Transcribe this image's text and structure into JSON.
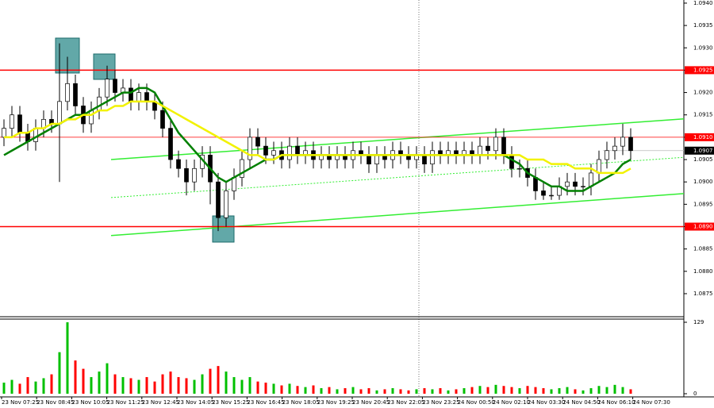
{
  "chart_data": {
    "type": "candlestick",
    "ylim": [
      1.08702,
      1.09407
    ],
    "yticks": [
      {
        "value": 1.094,
        "label": "1.0940"
      },
      1.0935,
      {
        "value": 1.093,
        "label": "1.0930"
      },
      1.0925,
      {
        "value": 1.092,
        "label": "1.0920"
      },
      1.0915,
      {
        "value": 1.091,
        "label": "1.0910"
      },
      1.0905,
      {
        "value": 1.09,
        "label": "1.0900"
      },
      1.0895,
      {
        "value": 1.089,
        "label": "1.0890"
      },
      1.0885,
      {
        "value": 1.088,
        "label": "1.0880"
      },
      1.0875
    ],
    "time_labels": [
      "23 Nov 07:25",
      "23 Nov 08:45",
      "23 Nov 10:05",
      "23 Nov 11:25",
      "23 Nov 12:45",
      "23 Nov 14:05",
      "23 Nov 15:25",
      "23 Nov 16:45",
      "23 Nov 18:05",
      "23 Nov 19:25",
      "23 Nov 20:45",
      "23 Nov 22:05",
      "23 Nov 23:25",
      "24 Nov 00:50",
      "24 Nov 02:10",
      "24 Nov 03:30",
      "24 Nov 04:50",
      "24 Nov 06:10",
      "24 Nov 07:30"
    ],
    "candles": {
      "up_color": "#ffffff",
      "down_color": "#000000",
      "open": [
        1.091,
        1.0912,
        1.0915,
        1.0911,
        1.0909,
        1.0912,
        1.0914,
        1.0913,
        1.0918,
        1.0922,
        1.0917,
        1.0913,
        1.0916,
        1.0919,
        1.0923,
        1.092,
        1.0921,
        1.0918,
        1.092,
        1.0918,
        1.0916,
        1.0912,
        1.0905,
        1.0903,
        1.09,
        1.0903,
        1.0906,
        1.09,
        1.0892,
        1.0898,
        1.0901,
        1.0905,
        1.091,
        1.0908,
        1.0906,
        1.0907,
        1.0905,
        1.0908,
        1.0906,
        1.0907,
        1.0905,
        1.0906,
        1.0905,
        1.0906,
        1.0905,
        1.0907,
        1.0906,
        1.0904,
        1.0906,
        1.0905,
        1.0907,
        1.0906,
        1.0905,
        1.0906,
        1.0904,
        1.0907,
        1.0906,
        1.0907,
        1.0906,
        1.0907,
        1.0906,
        1.0908,
        1.0907,
        1.091,
        1.0906,
        1.0903,
        1.0903,
        1.0901,
        1.0898,
        1.0897,
        1.0897,
        1.0899,
        1.09,
        1.0899,
        1.0899,
        1.0902,
        1.0905,
        1.0907,
        1.0908,
        1.091
      ],
      "high": [
        1.0914,
        1.0917,
        1.0917,
        1.0913,
        1.0914,
        1.0916,
        1.0916,
        1.0931,
        1.0928,
        1.0924,
        1.0919,
        1.0918,
        1.0921,
        1.0926,
        1.0925,
        1.0923,
        1.0923,
        1.0922,
        1.0922,
        1.092,
        1.0918,
        1.0914,
        1.0907,
        1.0905,
        1.0905,
        1.0908,
        1.0908,
        1.0902,
        1.09,
        1.0903,
        1.0907,
        1.0912,
        1.0912,
        1.091,
        1.0909,
        1.0909,
        1.091,
        1.091,
        1.0909,
        1.0909,
        1.0908,
        1.0908,
        1.0908,
        1.0908,
        1.0909,
        1.0909,
        1.0908,
        1.0908,
        1.0908,
        1.0909,
        1.0909,
        1.0908,
        1.0908,
        1.0908,
        1.0909,
        1.0909,
        1.0909,
        1.0909,
        1.0909,
        1.0909,
        1.091,
        1.091,
        1.0912,
        1.0912,
        1.0908,
        1.0905,
        1.0905,
        1.0903,
        1.09,
        1.0899,
        1.0901,
        1.0902,
        1.0902,
        1.0901,
        1.0904,
        1.0907,
        1.0909,
        1.091,
        1.0913,
        1.0912
      ],
      "low": [
        1.0908,
        1.091,
        1.0909,
        1.0907,
        1.0907,
        1.091,
        1.0911,
        1.09,
        1.0916,
        1.0915,
        1.0911,
        1.0911,
        1.0914,
        1.0917,
        1.0918,
        1.0918,
        1.0916,
        1.0916,
        1.0916,
        1.0914,
        1.091,
        1.0903,
        1.0901,
        1.0897,
        1.0898,
        1.0901,
        1.0895,
        1.0889,
        1.089,
        1.0896,
        1.0899,
        1.0903,
        1.0906,
        1.0904,
        1.0904,
        1.0903,
        1.0903,
        1.0904,
        1.0904,
        1.0903,
        1.0903,
        1.0903,
        1.0903,
        1.0903,
        1.0903,
        1.0904,
        1.0902,
        1.0902,
        1.0903,
        1.0903,
        1.0904,
        1.0903,
        1.0903,
        1.0902,
        1.0902,
        1.0904,
        1.0904,
        1.0904,
        1.0904,
        1.0904,
        1.0904,
        1.0905,
        1.0905,
        1.0904,
        1.0901,
        1.0901,
        1.0899,
        1.0896,
        1.0896,
        1.0896,
        1.0896,
        1.0897,
        1.0897,
        1.0897,
        1.0897,
        1.09,
        1.0903,
        1.0905,
        1.0906,
        1.0905
      ],
      "close": [
        1.0912,
        1.0915,
        1.0911,
        1.0909,
        1.0912,
        1.0914,
        1.0913,
        1.0918,
        1.0922,
        1.0917,
        1.0913,
        1.0916,
        1.0919,
        1.0923,
        1.092,
        1.0921,
        1.0918,
        1.092,
        1.0918,
        1.0916,
        1.0912,
        1.0905,
        1.0903,
        1.09,
        1.0903,
        1.0906,
        1.09,
        1.0892,
        1.0898,
        1.0901,
        1.0905,
        1.091,
        1.0908,
        1.0906,
        1.0907,
        1.0905,
        1.0908,
        1.0906,
        1.0907,
        1.0905,
        1.0906,
        1.0905,
        1.0906,
        1.0905,
        1.0907,
        1.0906,
        1.0904,
        1.0906,
        1.0905,
        1.0907,
        1.0906,
        1.0905,
        1.0906,
        1.0904,
        1.0907,
        1.0906,
        1.0907,
        1.0906,
        1.0907,
        1.0906,
        1.0908,
        1.0907,
        1.091,
        1.0906,
        1.0903,
        1.0903,
        1.0901,
        1.0898,
        1.0897,
        1.0897,
        1.0899,
        1.09,
        1.0899,
        1.0899,
        1.0902,
        1.0905,
        1.0907,
        1.0908,
        1.091,
        1.0907
      ]
    },
    "moving_averages": [
      {
        "color": "#008000",
        "values": [
          1.0906,
          1.0907,
          1.0908,
          1.0909,
          1.091,
          1.0911,
          1.0912,
          1.0913,
          1.0914,
          1.0915,
          1.0915,
          1.0916,
          1.0917,
          1.0918,
          1.0919,
          1.092,
          1.092,
          1.0921,
          1.0921,
          1.092,
          1.0917,
          1.0914,
          1.0911,
          1.0909,
          1.0907,
          1.0905,
          1.0903,
          1.0901,
          1.09,
          1.0901,
          1.0902,
          1.0903,
          1.0904,
          1.0905,
          1.0905,
          1.0906,
          1.0906,
          1.0906,
          1.0906,
          1.0906,
          1.0906,
          1.0906,
          1.0906,
          1.0906,
          1.0906,
          1.0906,
          1.0906,
          1.0906,
          1.0906,
          1.0906,
          1.0906,
          1.0906,
          1.0906,
          1.0906,
          1.0906,
          1.0906,
          1.0906,
          1.0906,
          1.0906,
          1.0906,
          1.0906,
          1.0906,
          1.0906,
          1.0906,
          1.0905,
          1.0904,
          1.0902,
          1.0901,
          1.09,
          1.0899,
          1.0899,
          1.0898,
          1.0898,
          1.0898,
          1.0899,
          1.09,
          1.0901,
          1.0902,
          1.0904,
          1.0905
        ]
      },
      {
        "color": "#f2f200",
        "values": [
          1.091,
          1.091,
          1.0911,
          1.0911,
          1.0912,
          1.0912,
          1.0913,
          1.0913,
          1.0914,
          1.0914,
          1.0915,
          1.0915,
          1.0916,
          1.0916,
          1.0917,
          1.0917,
          1.0918,
          1.0918,
          1.0918,
          1.0918,
          1.0917,
          1.0916,
          1.0915,
          1.0914,
          1.0913,
          1.0912,
          1.0911,
          1.091,
          1.0909,
          1.0908,
          1.0907,
          1.0906,
          1.0906,
          1.0905,
          1.0905,
          1.0906,
          1.0906,
          1.0906,
          1.0906,
          1.0906,
          1.0906,
          1.0906,
          1.0906,
          1.0906,
          1.0906,
          1.0906,
          1.0906,
          1.0906,
          1.0906,
          1.0906,
          1.0906,
          1.0906,
          1.0906,
          1.0906,
          1.0906,
          1.0906,
          1.0906,
          1.0906,
          1.0906,
          1.0906,
          1.0906,
          1.0906,
          1.0906,
          1.0906,
          1.0906,
          1.0906,
          1.0905,
          1.0905,
          1.0905,
          1.0904,
          1.0904,
          1.0904,
          1.0903,
          1.0903,
          1.0903,
          1.0902,
          1.0902,
          1.0902,
          1.0902,
          1.0903
        ]
      }
    ],
    "trend_lines": [
      {
        "start": 1.0905,
        "end": 1.09141,
        "color": "#33ee33",
        "dashed": false
      },
      {
        "start": 1.08965,
        "end": 1.09055,
        "color": "#33ee33",
        "dashed": true
      },
      {
        "start": 1.0888,
        "end": 1.08974,
        "color": "#33ee33",
        "dashed": false
      }
    ],
    "levels": [
      {
        "value": 1.0925,
        "color": "#ff0000",
        "bold": true
      },
      {
        "value": 1.091,
        "label": "1.0910",
        "color": "#ff0000",
        "bold": false
      },
      {
        "value": 1.089,
        "label": "1.0890",
        "color": "#ff0000",
        "bold": true
      }
    ],
    "current_price": {
      "value": 1.0907,
      "color": "#000000"
    },
    "volume": {
      "ylim": [
        0,
        129
      ],
      "yticks": [
        0,
        129
      ],
      "up_color": "#00c000",
      "down_color": "#ff0000",
      "values": [
        20,
        25,
        18,
        30,
        22,
        28,
        35,
        75,
        129,
        60,
        45,
        30,
        40,
        55,
        35,
        30,
        28,
        25,
        30,
        22,
        35,
        40,
        30,
        28,
        25,
        35,
        45,
        50,
        40,
        30,
        25,
        30,
        22,
        20,
        18,
        15,
        18,
        14,
        12,
        15,
        10,
        12,
        8,
        10,
        12,
        8,
        10,
        6,
        8,
        10,
        8,
        6,
        8,
        10,
        8,
        10,
        6,
        8,
        10,
        12,
        14,
        12,
        16,
        14,
        12,
        10,
        14,
        12,
        10,
        8,
        10,
        12,
        8,
        6,
        10,
        14,
        12,
        16,
        12,
        8
      ]
    }
  }
}
